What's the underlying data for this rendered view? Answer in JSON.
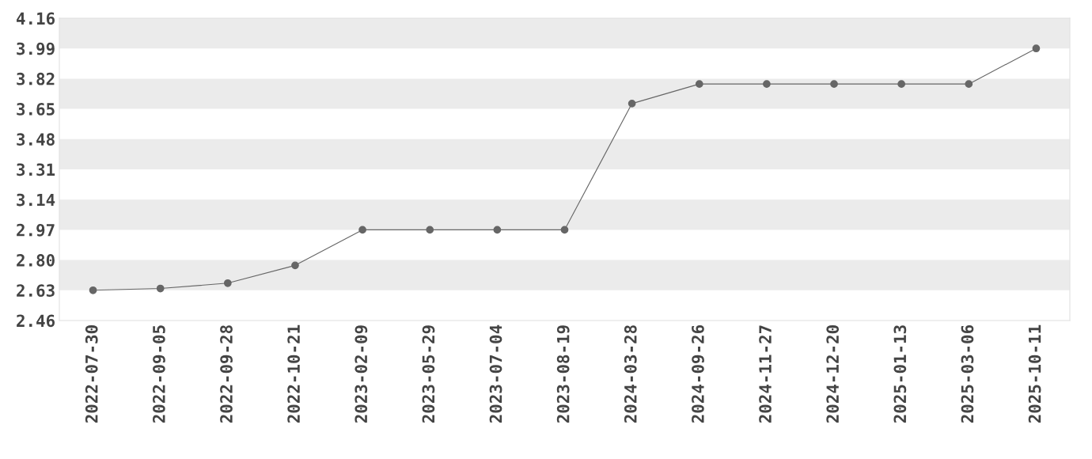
{
  "chart_data": {
    "type": "line",
    "categories": [
      "2022-07-30",
      "2022-09-05",
      "2022-09-28",
      "2022-10-21",
      "2023-02-09",
      "2023-05-29",
      "2023-07-04",
      "2023-08-19",
      "2024-03-28",
      "2024-09-26",
      "2024-11-27",
      "2024-12-20",
      "2025-01-13",
      "2025-03-06",
      "2025-10-11"
    ],
    "series": [
      {
        "color": "#666666",
        "values": [
          2.63,
          2.64,
          2.67,
          2.77,
          2.97,
          2.97,
          2.97,
          2.97,
          3.68,
          3.79,
          3.79,
          3.79,
          3.79,
          3.79,
          3.99
        ]
      }
    ],
    "ylim": [
      2.46,
      4.16
    ],
    "yticks": [
      2.46,
      2.63,
      {
        "value": 2.8,
        "label": "2.80"
      },
      2.97,
      3.14,
      3.31,
      3.48,
      3.65,
      3.82,
      3.99,
      4.16
    ],
    "bands": [
      {
        "axis": "y",
        "from": 2.63,
        "to": 2.8,
        "color": "#ebebeb"
      },
      {
        "axis": "y",
        "from": 2.97,
        "to": 3.14,
        "color": "#ebebeb"
      },
      {
        "axis": "y",
        "from": 3.31,
        "to": 3.48,
        "color": "#ebebeb"
      },
      {
        "axis": "y",
        "from": 3.65,
        "to": 3.82,
        "color": "#ebebeb"
      },
      {
        "axis": "y",
        "from": 3.99,
        "to": 4.16,
        "color": "#ebebeb"
      }
    ],
    "marker": "circle",
    "line_style": "solid"
  }
}
